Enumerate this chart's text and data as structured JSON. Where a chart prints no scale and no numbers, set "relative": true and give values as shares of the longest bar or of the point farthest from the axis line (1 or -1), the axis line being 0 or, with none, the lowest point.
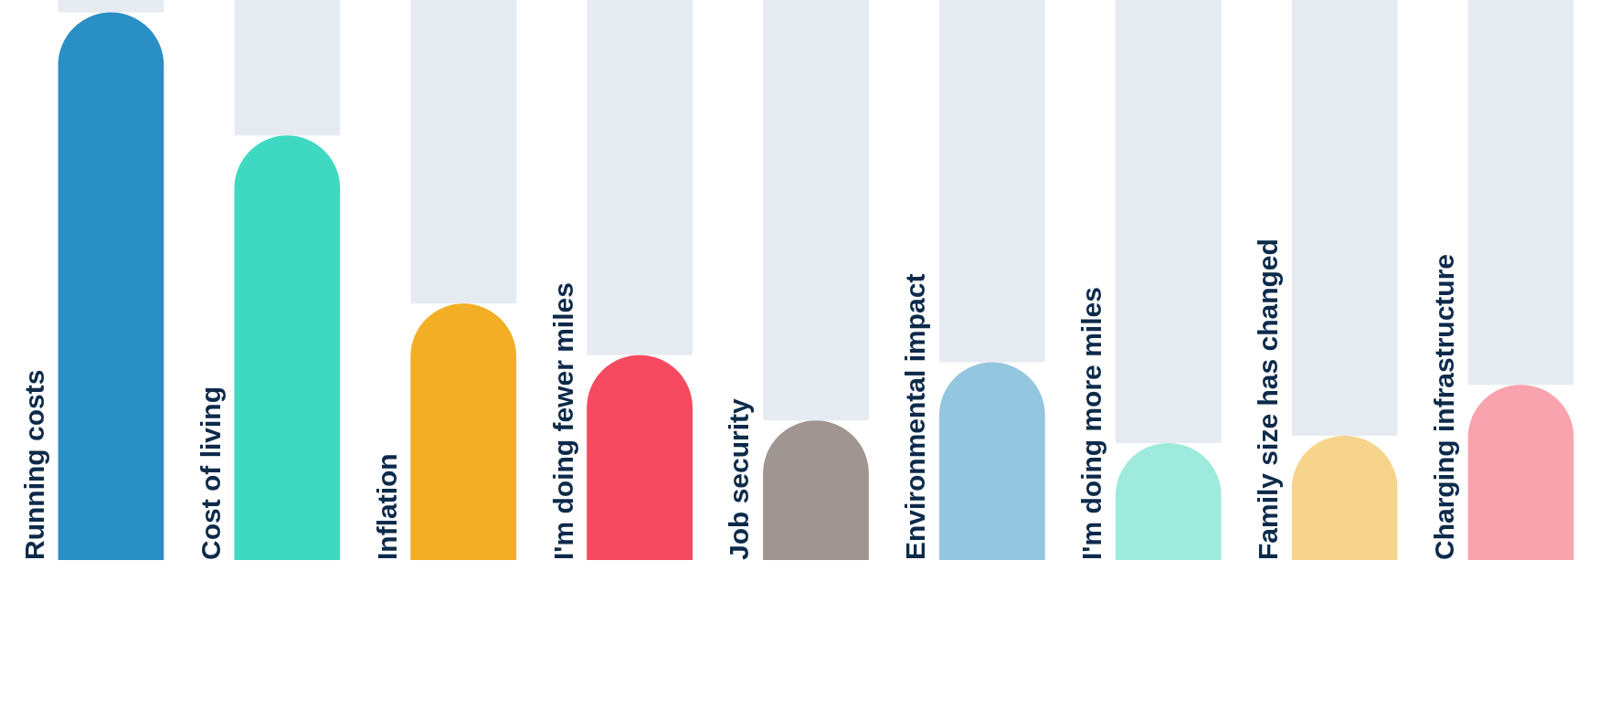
{
  "chart_data": {
    "type": "bar",
    "relative": true,
    "stacked": true,
    "legend": false,
    "categories": [
      "Running costs",
      "Cost of living",
      "Inflation",
      "I'm doing fewer miles",
      "Job security",
      "Environmental impact",
      "I'm doing more miles",
      "Family size has changed",
      "Charging infrastructure"
    ],
    "series": [
      {
        "colors": [
          "#2a8fc4",
          "#3fd9c1",
          "#f2ae24",
          "#f54a5f",
          "#9f9591",
          "#95c6e0",
          "#9eeadc",
          "#f7d48b",
          "#f9a3ae"
        ],
        "values": [
          0.978,
          0.758,
          0.458,
          0.366,
          0.249,
          0.353,
          0.209,
          0.222,
          0.313
        ]
      },
      {
        "color": "#e6ebf2",
        "values": [
          0.022,
          0.242,
          0.542,
          0.634,
          0.751,
          0.647,
          0.791,
          0.778,
          0.687
        ]
      }
    ]
  }
}
